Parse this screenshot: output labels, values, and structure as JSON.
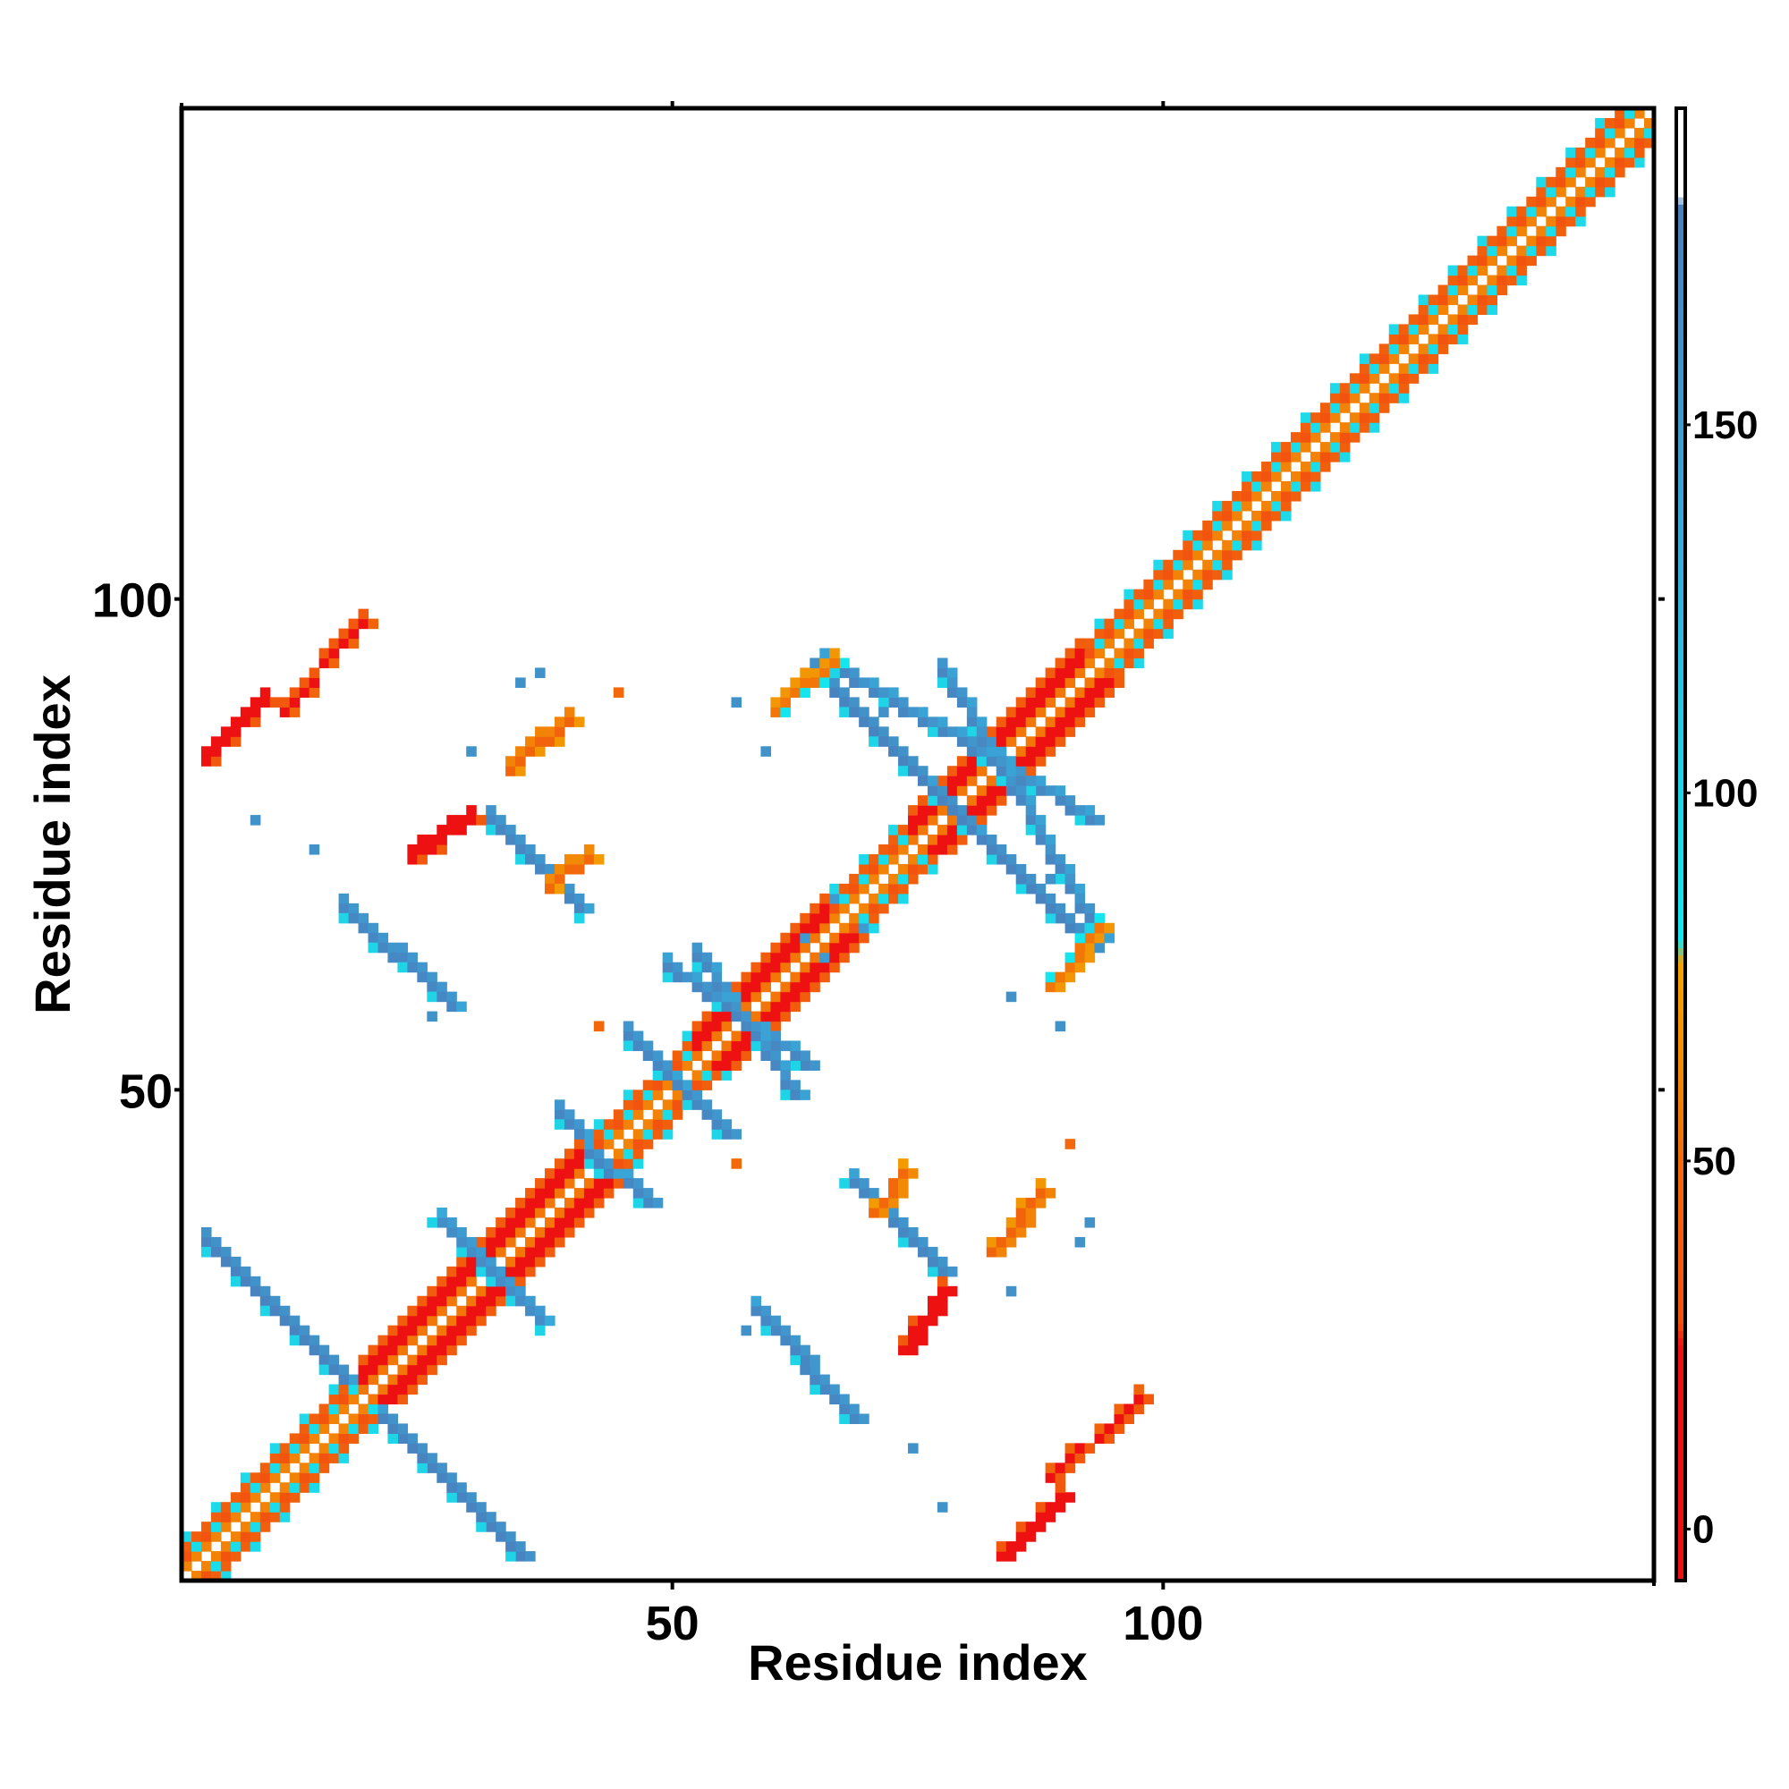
{
  "chart_data": {
    "type": "heatmap",
    "subtype": "residue contact map (symmetric)",
    "xlabel": "Residue index",
    "ylabel": "Residue index",
    "xlim": [
      0,
      150
    ],
    "ylim": [
      0,
      150
    ],
    "x_ticks": [
      50,
      100
    ],
    "y_ticks": [
      50,
      100
    ],
    "grid": false,
    "colorbar": {
      "ticks": [
        0,
        50,
        100,
        150
      ],
      "range": [
        -7,
        193
      ],
      "stops": [
        {
          "value": -7,
          "color": "#ee1111"
        },
        {
          "value": 25,
          "color": "#ee1111"
        },
        {
          "value": 28,
          "color": "#f2510f"
        },
        {
          "value": 50,
          "color": "#f26a0a"
        },
        {
          "value": 63,
          "color": "#f28a05"
        },
        {
          "value": 77,
          "color": "#f4a200"
        },
        {
          "value": 80,
          "color": "#13e6ee"
        },
        {
          "value": 100,
          "color": "#20d4e8"
        },
        {
          "value": 130,
          "color": "#35aede"
        },
        {
          "value": 180,
          "color": "#4a7fbd"
        },
        {
          "value": 181,
          "color": "#ffffff"
        },
        {
          "value": 193,
          "color": "#ffffff"
        }
      ]
    },
    "structure": {
      "n_residues": 150,
      "diagonal_bands": [
        {
          "from": 0,
          "to": 18,
          "kind": "alternating"
        },
        {
          "from": 18,
          "to": 42,
          "kind": "helix"
        },
        {
          "from": 42,
          "to": 52,
          "kind": "alternating"
        },
        {
          "from": 52,
          "to": 66,
          "kind": "helix"
        },
        {
          "from": 66,
          "to": 74,
          "kind": "alternating"
        },
        {
          "from": 74,
          "to": 92,
          "kind": "helix"
        },
        {
          "from": 92,
          "to": 150,
          "kind": "alternating"
        }
      ],
      "antiparallel_strands": [
        {
          "i": [
            2,
            16
          ],
          "j": [
            34,
            20
          ],
          "value": 175
        },
        {
          "i": [
            30,
            36
          ],
          "j": [
            32,
            26
          ],
          "value": 165
        },
        {
          "i": [
            38,
            43
          ],
          "j": [
            47,
            41
          ],
          "value": 170
        },
        {
          "i": [
            45,
            50
          ],
          "j": [
            55,
            50
          ],
          "value": 170
        },
        {
          "i": [
            52,
            62
          ],
          "j": [
            63,
            49
          ],
          "value": 172
        },
        {
          "i": [
            64,
            80
          ],
          "j": [
            92,
            76
          ],
          "value": 175
        },
        {
          "i": [
            77,
            93
          ],
          "j": [
            92,
            65
          ],
          "value": 172
        },
        {
          "i": [
            16,
            27
          ],
          "j": [
            68,
            58
          ],
          "value": 170
        },
        {
          "i": [
            31,
            40
          ],
          "j": [
            77,
            68
          ],
          "value": 172
        }
      ],
      "parallel_contacts": [
        {
          "i": [
            2,
            8
          ],
          "j": [
            83,
            89
          ],
          "value": 8
        },
        {
          "i": [
            10,
            18
          ],
          "j": [
            88,
            97
          ],
          "value": 20
        },
        {
          "i": [
            23,
            29
          ],
          "j": [
            73,
            77
          ],
          "value": 10
        },
        {
          "i": [
            33,
            39
          ],
          "j": [
            82,
            87
          ],
          "value": 45
        },
        {
          "i": [
            37,
            41
          ],
          "j": [
            70,
            73
          ],
          "value": 48
        },
        {
          "i": [
            60,
            66
          ],
          "j": [
            88,
            93
          ],
          "value": 55
        }
      ],
      "isolated_contacts": [
        {
          "i": 7,
          "j": 77,
          "value": 160
        },
        {
          "i": 13,
          "j": 74,
          "value": 160
        },
        {
          "i": 25,
          "j": 57,
          "value": 160
        },
        {
          "i": 29,
          "j": 84,
          "value": 160
        },
        {
          "i": 34,
          "j": 91,
          "value": 160
        },
        {
          "i": 36,
          "j": 92,
          "value": 160
        },
        {
          "i": 42,
          "j": 56,
          "value": 48
        },
        {
          "i": 44,
          "j": 90,
          "value": 48
        },
        {
          "i": 56,
          "j": 89,
          "value": 160
        },
        {
          "i": 59,
          "j": 84,
          "value": 160
        },
        {
          "i": 63,
          "j": 65,
          "value": 150
        },
        {
          "i": 66,
          "j": 69,
          "value": 150
        },
        {
          "i": 71,
          "j": 88,
          "value": 160
        }
      ]
    }
  }
}
